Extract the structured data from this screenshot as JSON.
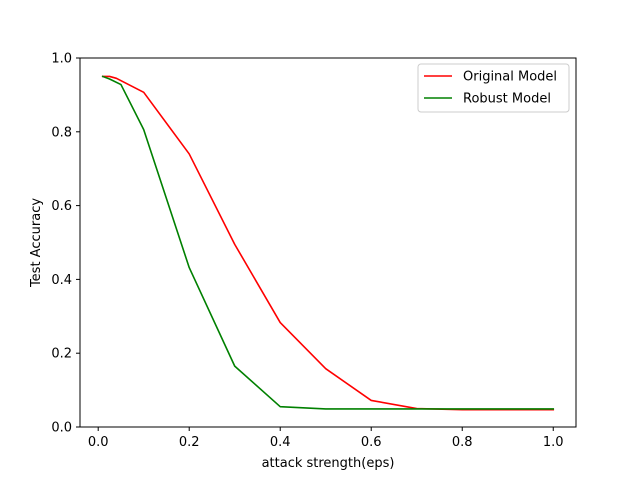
{
  "chart_data": {
    "type": "line",
    "title": "",
    "xlabel": "attack strength(eps)",
    "ylabel": "Test Accuracy",
    "xlim": [
      -0.04,
      1.05
    ],
    "ylim": [
      0.0,
      1.0
    ],
    "xticks": [
      0.0,
      0.2,
      0.4,
      0.6,
      0.8,
      1.0
    ],
    "xtick_labels": [
      "0.0",
      "0.2",
      "0.4",
      "0.6",
      "0.8",
      "1.0"
    ],
    "yticks": [
      0.0,
      0.2,
      0.4,
      0.6,
      0.8,
      1.0
    ],
    "ytick_labels": [
      "0.0",
      "0.2",
      "0.4",
      "0.6",
      "0.8",
      "1.0"
    ],
    "grid": false,
    "legend_position": "top-right",
    "series": [
      {
        "name": "Original Model",
        "color": "#ff0000",
        "x": [
          0.01,
          0.025,
          0.04,
          0.1,
          0.2,
          0.3,
          0.4,
          0.5,
          0.6,
          0.7,
          0.8,
          0.9,
          1.0
        ],
        "y": [
          0.95,
          0.95,
          0.945,
          0.907,
          0.74,
          0.495,
          0.283,
          0.158,
          0.072,
          0.05,
          0.047,
          0.047,
          0.047
        ]
      },
      {
        "name": "Robust Model",
        "color": "#008000",
        "x": [
          0.01,
          0.025,
          0.05,
          0.1,
          0.2,
          0.3,
          0.4,
          0.5,
          0.6,
          0.7,
          0.8,
          0.9,
          1.0
        ],
        "y": [
          0.95,
          0.943,
          0.928,
          0.806,
          0.432,
          0.165,
          0.055,
          0.049,
          0.049,
          0.049,
          0.049,
          0.049,
          0.049
        ]
      }
    ]
  }
}
